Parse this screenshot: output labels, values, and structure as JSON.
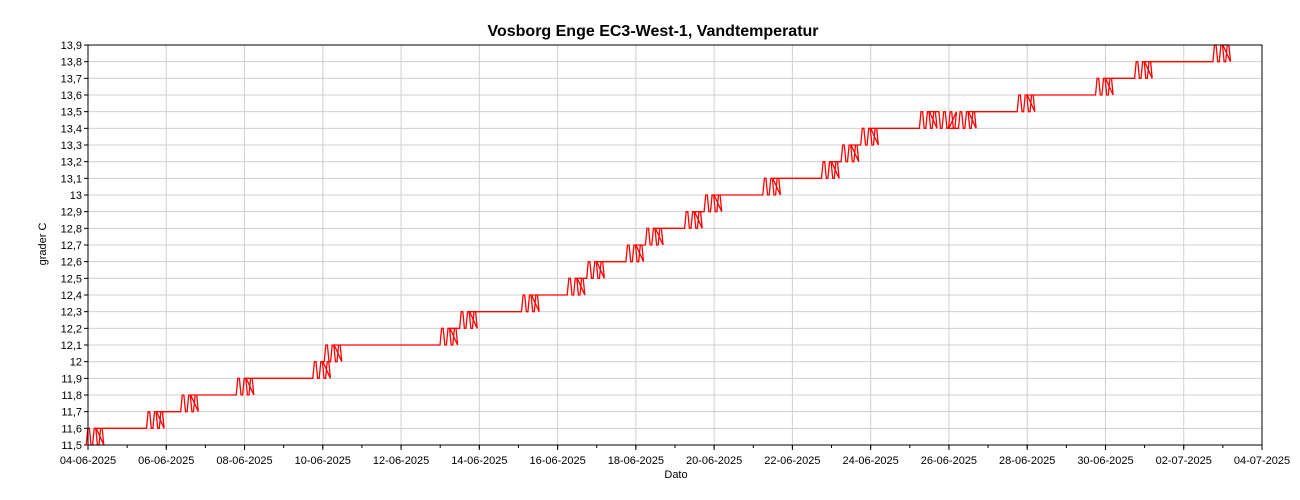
{
  "chart_data": {
    "type": "line",
    "title": "Vosborg Enge EC3-West-1, Vandtemperatur",
    "xlabel": "Dato",
    "ylabel": "grader C",
    "xlim": [
      "2025-06-04",
      "2025-07-04"
    ],
    "ylim": [
      11.5,
      13.9
    ],
    "grid": true,
    "x_ticks": [
      "04-06-2025",
      "06-06-2025",
      "08-06-2025",
      "10-06-2025",
      "12-06-2025",
      "14-06-2025",
      "16-06-2025",
      "18-06-2025",
      "20-06-2025",
      "22-06-2025",
      "24-06-2025",
      "26-06-2025",
      "28-06-2025",
      "30-06-2025",
      "02-07-2025",
      "04-07-2025"
    ],
    "y_ticks": [
      "11,5",
      "11,6",
      "11,7",
      "11,8",
      "11,9",
      "12",
      "12,1",
      "12,2",
      "12,3",
      "12,4",
      "12,5",
      "12,6",
      "12,7",
      "12,8",
      "12,9",
      "13",
      "13,1",
      "13,2",
      "13,3",
      "13,4",
      "13,5",
      "13,6",
      "13,7",
      "13,8",
      "13,9"
    ],
    "series": [
      {
        "color": "#ff0000",
        "x": [
          "2025-06-04 00:00",
          "2025-06-04 05:00",
          "2025-06-05 08:00",
          "2025-06-05 18:00",
          "2025-06-06 15:00",
          "2025-06-07 06:00",
          "2025-06-08 01:00",
          "2025-06-08 12:00",
          "2025-06-09 12:00",
          "2025-06-10 00:00",
          "2025-06-10 07:00",
          "2025-06-10 12:00",
          "2025-06-11 12:00",
          "2025-06-12 18:00",
          "2025-06-13 06:00",
          "2025-06-13 18:00",
          "2025-06-14 12:00",
          "2025-06-15 00:00",
          "2025-06-15 08:00",
          "2025-06-16 00:00",
          "2025-06-16 12:00",
          "2025-06-17 00:00",
          "2025-06-17 12:00",
          "2025-06-18 00:00",
          "2025-06-18 12:00",
          "2025-06-19 00:00",
          "2025-06-19 12:00",
          "2025-06-20 00:00",
          "2025-06-20 12:00",
          "2025-06-21 12:00",
          "2025-06-22 12:00",
          "2025-06-23 00:00",
          "2025-06-23 12:00",
          "2025-06-24 00:00",
          "2025-06-24 12:00",
          "2025-06-25 12:00",
          "2025-06-26 00:00",
          "2025-06-26 12:00",
          "2025-06-27 00:00",
          "2025-06-27 12:00",
          "2025-06-28 00:00",
          "2025-06-28 12:00",
          "2025-06-29 12:00",
          "2025-06-30 00:00",
          "2025-06-30 12:00",
          "2025-07-01 00:00",
          "2025-07-01 12:00",
          "2025-07-02 12:00",
          "2025-07-03 00:00",
          "2025-07-03 03:00"
        ],
        "y": [
          11.5,
          11.6,
          11.6,
          11.7,
          11.8,
          11.8,
          11.9,
          11.9,
          11.9,
          12.0,
          12.1,
          12.1,
          12.1,
          12.1,
          12.2,
          12.3,
          12.3,
          12.3,
          12.4,
          12.4,
          12.5,
          12.6,
          12.6,
          12.7,
          12.8,
          12.8,
          12.9,
          13.0,
          13.0,
          13.1,
          13.1,
          13.2,
          13.3,
          13.4,
          13.4,
          13.5,
          13.4,
          13.5,
          13.5,
          13.5,
          13.6,
          13.6,
          13.6,
          13.7,
          13.7,
          13.8,
          13.8,
          13.8,
          13.9,
          13.9
        ]
      }
    ]
  }
}
